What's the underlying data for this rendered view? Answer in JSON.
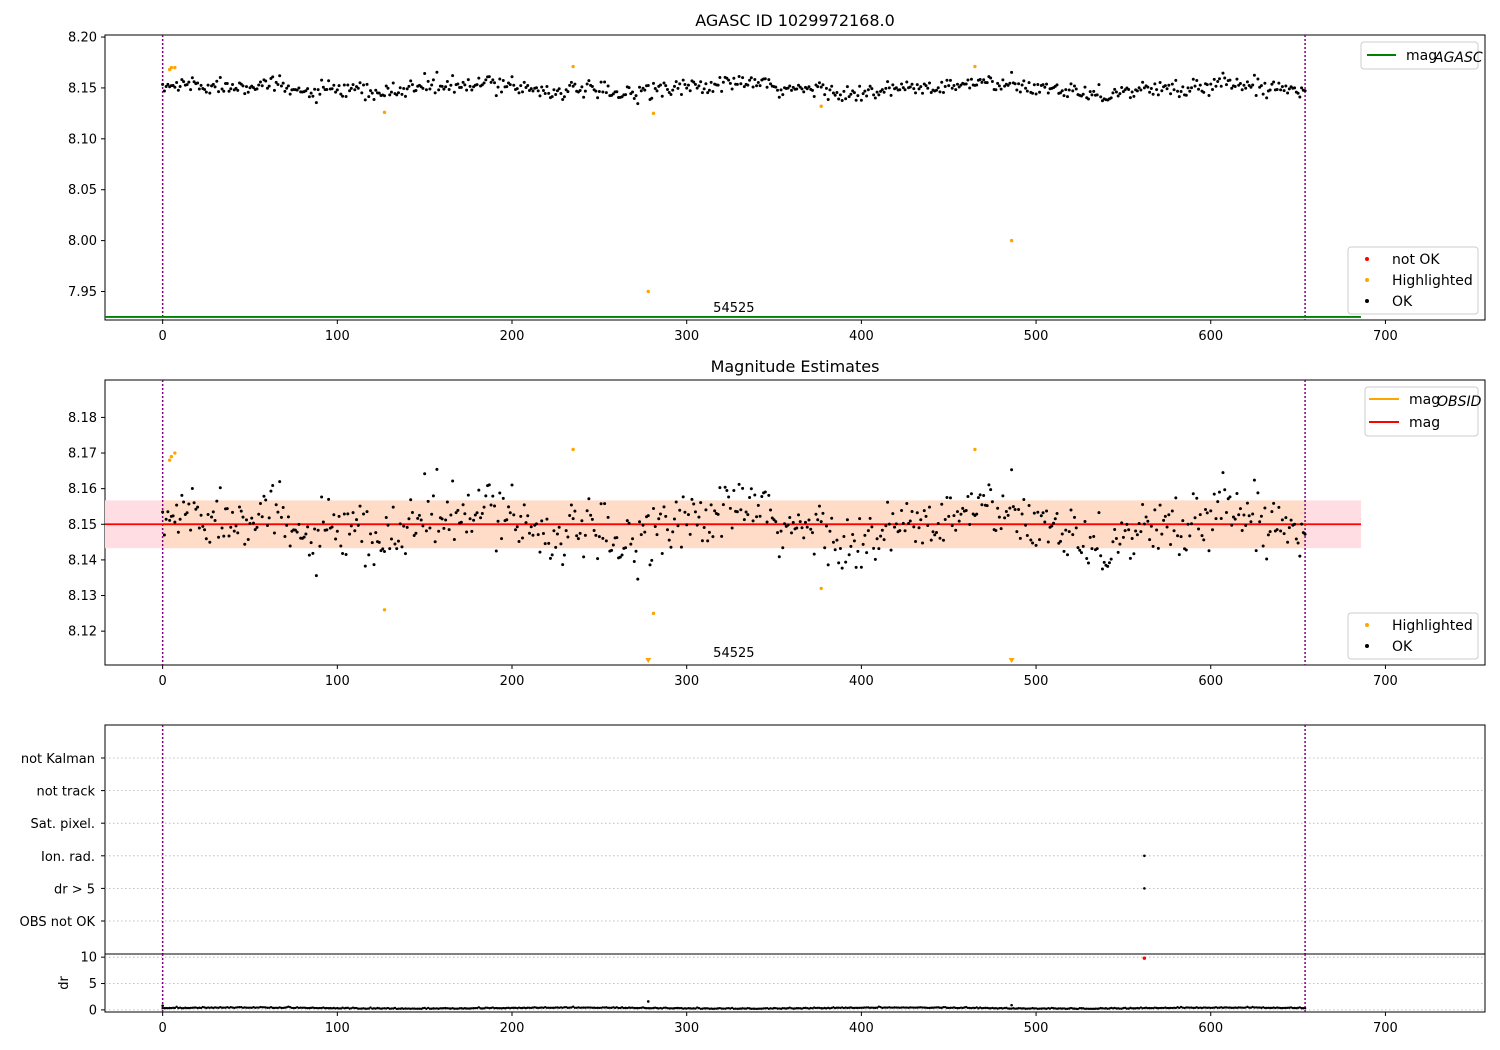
{
  "chart_data": [
    {
      "id": "agasc",
      "type": "scatter",
      "title": "AGASC ID 1029972168.0",
      "xlim": [
        -33,
        757
      ],
      "ylim": [
        7.922,
        8.202
      ],
      "xticks": [
        0,
        100,
        200,
        300,
        400,
        500,
        600,
        700
      ],
      "yticks": [
        7.95,
        8.0,
        8.05,
        8.1,
        8.15,
        8.2
      ],
      "ytick_labels": [
        "7.95",
        "8.00",
        "8.05",
        "8.10",
        "8.15",
        "8.20"
      ],
      "vlines": [
        0,
        654
      ],
      "hline": {
        "name": "mag_AGASC",
        "y": 7.925,
        "x_from": -33,
        "x_to": 686,
        "color": "#008000"
      },
      "annotation": {
        "text": "54525",
        "x": 327,
        "y": 7.926
      },
      "legend_top": [
        {
          "label": "mag",
          "sub": "AGASC",
          "color": "#008000",
          "kind": "line"
        }
      ],
      "legend_bottom": [
        {
          "label": "not OK",
          "color": "#ff0000",
          "kind": "dot"
        },
        {
          "label": "Highlighted",
          "color": "#ffa500",
          "kind": "dot"
        },
        {
          "label": "OK",
          "color": "#000000",
          "kind": "dot"
        }
      ],
      "highlighted": [
        [
          4,
          8.168
        ],
        [
          5,
          8.17
        ],
        [
          7,
          8.17
        ],
        [
          127,
          8.126
        ],
        [
          235,
          8.171
        ],
        [
          278,
          7.95
        ],
        [
          281,
          8.125
        ],
        [
          377,
          8.132
        ],
        [
          465,
          8.171
        ],
        [
          486,
          8.0
        ]
      ],
      "not_ok": []
    },
    {
      "id": "mag",
      "type": "scatter",
      "title": "Magnitude Estimates",
      "xlim": [
        -33,
        757
      ],
      "ylim": [
        8.1105,
        8.1905
      ],
      "xticks": [
        0,
        100,
        200,
        300,
        400,
        500,
        600,
        700
      ],
      "yticks": [
        8.12,
        8.13,
        8.14,
        8.15,
        8.16,
        8.17,
        8.18
      ],
      "ytick_labels": [
        "8.12",
        "8.13",
        "8.14",
        "8.15",
        "8.16",
        "8.17",
        "8.18"
      ],
      "vlines": [
        0,
        654
      ],
      "mag": 8.15,
      "band_outer": [
        8.1433,
        8.1567
      ],
      "band_inner": [
        8.1433,
        8.1567
      ],
      "band_outer_x": [
        -33,
        686
      ],
      "band_inner_x": [
        0,
        654
      ],
      "mag_obsid": 8.15,
      "annotation": {
        "text": "54525",
        "x": 327,
        "y": 8.1115
      },
      "legend_top": [
        {
          "label": "mag",
          "sub": "OBSID",
          "color": "#ffa500",
          "kind": "line"
        },
        {
          "label": "mag",
          "sub": "",
          "color": "#ff0000",
          "kind": "line"
        }
      ],
      "legend_bottom": [
        {
          "label": "Highlighted",
          "color": "#ffa500",
          "kind": "dot"
        },
        {
          "label": "OK",
          "color": "#000000",
          "kind": "dot"
        }
      ],
      "highlighted": [
        [
          4,
          8.168
        ],
        [
          5,
          8.169
        ],
        [
          7,
          8.17
        ],
        [
          127,
          8.126
        ],
        [
          235,
          8.171
        ],
        [
          281,
          8.125
        ],
        [
          377,
          8.132
        ],
        [
          465,
          8.171
        ]
      ],
      "offscale_markers": [
        278,
        486
      ]
    },
    {
      "id": "flags",
      "type": "scatter",
      "xlim": [
        -33,
        757
      ],
      "categories": [
        "OBS not OK",
        "dr > 5",
        "Ion. rad.",
        "Sat. pixel.",
        "not track",
        "not Kalman"
      ],
      "vlines": [
        0,
        654
      ],
      "points": [
        {
          "category": "dr > 5",
          "x": 562
        },
        {
          "category": "Ion. rad.",
          "x": 562
        }
      ]
    },
    {
      "id": "dr",
      "type": "scatter",
      "ylabel": "dr",
      "xlim": [
        -33,
        757
      ],
      "ylim": [
        -0.4,
        10.6
      ],
      "xticks": [
        0,
        100,
        200,
        300,
        400,
        500,
        600,
        700
      ],
      "yticks": [
        0,
        5,
        10
      ],
      "ytick_labels": [
        "0",
        "5",
        "10"
      ],
      "vlines": [
        0,
        654
      ],
      "red_points": [
        [
          562,
          9.8
        ]
      ],
      "outliers": [
        [
          0,
          0.8
        ],
        [
          278,
          1.6
        ],
        [
          486,
          0.9
        ]
      ]
    }
  ]
}
